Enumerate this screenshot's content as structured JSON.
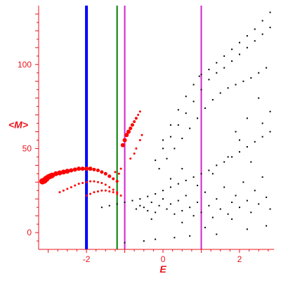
{
  "chart_data": {
    "type": "scatter",
    "xlabel": "E",
    "ylabel": "<M>",
    "xlim": [
      -3.25,
      2.9
    ],
    "ylim": [
      -10,
      135
    ],
    "x_ticks": [
      -2,
      0,
      2
    ],
    "y_ticks": [
      0,
      50,
      100
    ],
    "grid": false,
    "colors": {
      "axis": "#e8141c",
      "highlight": "#ff0000",
      "points": "#000000",
      "blue_line": "#0000ff",
      "green_line": "#008000",
      "magenta_line": "#d024d0"
    },
    "vertical_lines": [
      {
        "x": -2.0,
        "color": "blue_line",
        "width": "thick"
      },
      {
        "x": -1.2,
        "color": "green_line",
        "width": "thin"
      },
      {
        "x": -1.0,
        "color": "magenta_line",
        "width": "thin"
      },
      {
        "x": 1.0,
        "color": "magenta_line",
        "width": "thin"
      }
    ],
    "highlighted_series": [
      {
        "points": [
          [
            -3.15,
            30.5
          ],
          [
            -3.1,
            31
          ],
          [
            -3.05,
            32
          ],
          [
            -3.0,
            33
          ],
          [
            -2.95,
            33.5
          ],
          [
            -2.9,
            34
          ],
          [
            -2.8,
            35
          ],
          [
            -2.7,
            35.5
          ],
          [
            -2.6,
            36
          ],
          [
            -2.5,
            36.5
          ],
          [
            -2.4,
            37
          ],
          [
            -2.3,
            37.5
          ],
          [
            -2.2,
            38
          ],
          [
            -2.1,
            38
          ],
          [
            -2.0,
            38
          ],
          [
            -1.9,
            38
          ],
          [
            -1.8,
            37.5
          ],
          [
            -1.7,
            37
          ],
          [
            -1.6,
            36
          ],
          [
            -1.5,
            35
          ],
          [
            -1.4,
            33.5
          ],
          [
            -1.3,
            32
          ],
          [
            -1.2,
            30.5
          ]
        ],
        "sizes": [
          9,
          9,
          9,
          8,
          8,
          8,
          7,
          7,
          7,
          7,
          6,
          6,
          6,
          6,
          6,
          6,
          5,
          5,
          5,
          5,
          5,
          4,
          4
        ]
      },
      {
        "points": [
          [
            -2.7,
            24
          ],
          [
            -2.6,
            25
          ],
          [
            -2.5,
            26
          ],
          [
            -2.4,
            27
          ],
          [
            -2.3,
            28
          ],
          [
            -2.2,
            29
          ],
          [
            -2.1,
            29.5
          ],
          [
            -2.0,
            30
          ],
          [
            -1.9,
            30.5
          ],
          [
            -1.8,
            30.5
          ],
          [
            -1.7,
            30
          ],
          [
            -1.6,
            29.5
          ],
          [
            -1.5,
            28.5
          ],
          [
            -1.4,
            27
          ],
          [
            -1.3,
            25.5
          ],
          [
            -1.2,
            24
          ]
        ],
        "sizes": [
          3,
          3,
          3,
          3,
          3,
          3,
          3,
          3,
          3,
          3,
          3,
          3,
          3,
          3,
          3,
          3
        ]
      },
      {
        "points": [
          [
            -2.0,
            22
          ],
          [
            -1.9,
            23
          ],
          [
            -1.8,
            24
          ],
          [
            -1.7,
            24.5
          ],
          [
            -1.6,
            25
          ],
          [
            -1.5,
            25
          ],
          [
            -1.4,
            24.5
          ],
          [
            -1.3,
            24
          ],
          [
            -1.2,
            23
          ],
          [
            -1.1,
            22
          ]
        ],
        "sizes": [
          3,
          3,
          3,
          3,
          3,
          3,
          3,
          3,
          3,
          3
        ]
      },
      {
        "points": [
          [
            -1.05,
            52
          ],
          [
            -1.0,
            55
          ],
          [
            -0.95,
            58
          ],
          [
            -0.9,
            60
          ],
          [
            -0.85,
            62
          ],
          [
            -0.8,
            64
          ],
          [
            -0.75,
            66
          ],
          [
            -0.7,
            68
          ],
          [
            -0.65,
            70
          ],
          [
            -0.6,
            72
          ]
        ],
        "sizes": [
          6,
          6,
          6,
          6,
          5,
          5,
          4,
          4,
          3,
          3
        ]
      },
      {
        "points": [
          [
            -1.25,
            36
          ],
          [
            -1.15,
            35
          ],
          [
            -1.1,
            38
          ],
          [
            -0.85,
            44
          ],
          [
            -0.75,
            47
          ],
          [
            -0.7,
            50
          ],
          [
            -0.6,
            55
          ],
          [
            -0.55,
            58
          ]
        ],
        "sizes": [
          3,
          3,
          3,
          3,
          3,
          3,
          3,
          3
        ]
      }
    ],
    "point_series": [
      {
        "points": [
          [
            -1.6,
            15
          ],
          [
            -1.4,
            16
          ],
          [
            -1.2,
            17
          ],
          [
            -1.0,
            18
          ],
          [
            -0.8,
            19
          ],
          [
            -0.6,
            20
          ],
          [
            -0.4,
            21.5
          ],
          [
            -0.2,
            23
          ],
          [
            0.0,
            25
          ],
          [
            0.2,
            27
          ],
          [
            0.4,
            29
          ],
          [
            0.6,
            31
          ],
          [
            0.8,
            33
          ],
          [
            1.0,
            35
          ],
          [
            1.2,
            37
          ],
          [
            1.4,
            40
          ],
          [
            1.6,
            42
          ],
          [
            1.8,
            45
          ],
          [
            2.0,
            48
          ],
          [
            2.2,
            51
          ],
          [
            2.4,
            54
          ],
          [
            2.6,
            57
          ],
          [
            2.8,
            60
          ]
        ]
      },
      {
        "points": [
          [
            -0.2,
            43
          ],
          [
            0.0,
            50
          ],
          [
            0.2,
            57
          ],
          [
            0.4,
            64
          ],
          [
            0.6,
            71
          ],
          [
            0.8,
            78
          ],
          [
            1.0,
            85
          ],
          [
            1.2,
            91
          ],
          [
            1.4,
            95
          ],
          [
            1.6,
            98
          ],
          [
            1.8,
            102
          ],
          [
            2.0,
            106
          ],
          [
            2.2,
            110
          ],
          [
            2.4,
            114
          ],
          [
            2.6,
            118
          ],
          [
            2.8,
            122
          ]
        ]
      },
      {
        "points": [
          [
            -0.1,
            38
          ],
          [
            0.1,
            44
          ],
          [
            0.3,
            50
          ],
          [
            0.5,
            56
          ],
          [
            0.7,
            62
          ],
          [
            0.9,
            68
          ],
          [
            1.1,
            74
          ],
          [
            1.3,
            79
          ],
          [
            1.5,
            83
          ],
          [
            1.7,
            86
          ],
          [
            1.9,
            88
          ],
          [
            2.1,
            90
          ],
          [
            2.3,
            92
          ],
          [
            2.5,
            95
          ],
          [
            2.7,
            98
          ]
        ]
      },
      {
        "points": [
          [
            0.0,
            55
          ],
          [
            0.2,
            64
          ],
          [
            0.4,
            73
          ],
          [
            0.6,
            81
          ],
          [
            0.8,
            88
          ],
          [
            0.95,
            93
          ],
          [
            1.0,
            94
          ],
          [
            1.2,
            97
          ],
          [
            1.4,
            101
          ],
          [
            1.6,
            105
          ],
          [
            1.8,
            109
          ],
          [
            2.0,
            113
          ],
          [
            2.2,
            117
          ],
          [
            2.4,
            121
          ],
          [
            2.6,
            126
          ],
          [
            2.8,
            131
          ]
        ]
      },
      {
        "points": [
          [
            -0.7,
            14
          ],
          [
            -0.6,
            16
          ],
          [
            -0.5,
            15
          ],
          [
            -0.4,
            13
          ],
          [
            -0.3,
            18
          ],
          [
            -0.2,
            12
          ],
          [
            -0.1,
            16
          ],
          [
            0.0,
            20
          ],
          [
            0.1,
            14
          ],
          [
            0.2,
            17
          ],
          [
            0.3,
            11
          ],
          [
            0.4,
            19
          ],
          [
            0.5,
            13
          ],
          [
            0.6,
            22
          ],
          [
            0.7,
            15
          ],
          [
            0.8,
            10
          ],
          [
            0.9,
            18
          ],
          [
            1.0,
            12
          ],
          [
            1.1,
            24
          ],
          [
            1.2,
            16
          ],
          [
            1.3,
            9
          ],
          [
            1.4,
            20
          ],
          [
            1.5,
            14
          ],
          [
            1.6,
            27
          ],
          [
            1.7,
            11
          ],
          [
            1.8,
            18
          ],
          [
            1.9,
            22
          ],
          [
            2.0,
            15
          ],
          [
            2.1,
            30
          ],
          [
            2.2,
            19
          ],
          [
            2.3,
            12
          ],
          [
            2.4,
            25
          ],
          [
            2.5,
            17
          ],
          [
            2.6,
            33
          ],
          [
            2.7,
            21
          ],
          [
            2.8,
            14
          ]
        ]
      },
      {
        "points": [
          [
            -1.0,
            -6
          ],
          [
            -0.5,
            -5
          ],
          [
            -0.2,
            -4
          ],
          [
            0.3,
            -3
          ],
          [
            0.7,
            -2
          ],
          [
            1.4,
            -1
          ],
          [
            2.2,
            2
          ],
          [
            2.7,
            4
          ],
          [
            0.5,
            6
          ],
          [
            1.8,
            8
          ],
          [
            -0.3,
            8
          ],
          [
            1.1,
            3
          ]
        ]
      },
      {
        "points": [
          [
            0.2,
            32
          ],
          [
            0.5,
            38
          ],
          [
            0.9,
            28
          ],
          [
            1.3,
            35
          ],
          [
            1.7,
            45
          ],
          [
            2.0,
            55
          ],
          [
            2.3,
            42
          ],
          [
            2.6,
            65
          ],
          [
            2.8,
            72
          ],
          [
            2.5,
            80
          ],
          [
            2.2,
            68
          ],
          [
            1.9,
            60
          ]
        ]
      }
    ]
  }
}
